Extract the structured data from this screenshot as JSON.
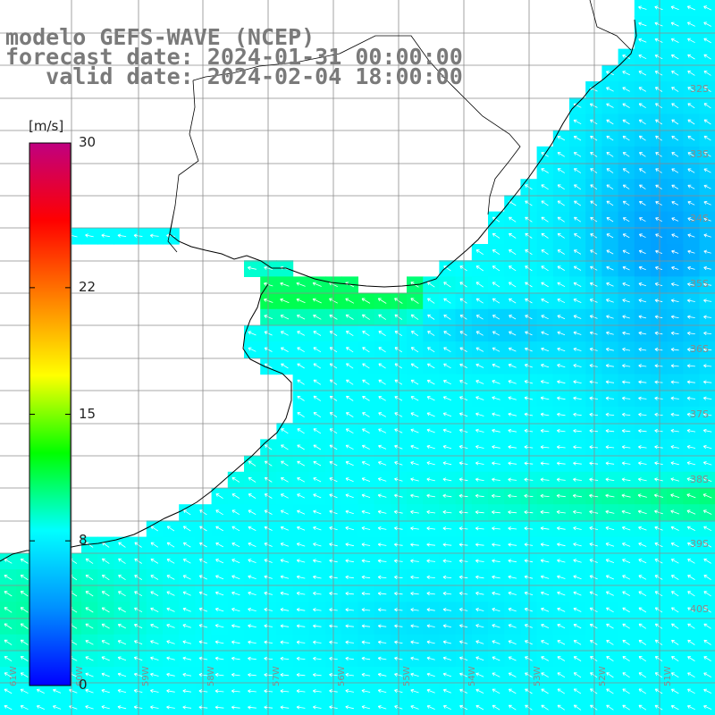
{
  "title": {
    "line1": "modelo GEFS-WAVE (NCEP)",
    "line2": "forecast date: 2024-01-31 00:00:00",
    "line3": "   valid date: 2024-02-04 18:00:00"
  },
  "colorbar": {
    "unit": "[m/s]",
    "min": 0,
    "max": 30,
    "ticks": [
      {
        "value": 30,
        "label": "30"
      },
      {
        "value": 22,
        "label": "22"
      },
      {
        "value": 15,
        "label": "15"
      },
      {
        "value": 8,
        "label": "8"
      },
      {
        "value": 0,
        "label": "0"
      }
    ],
    "colors": [
      "#0000ff",
      "#0090ff",
      "#00ffff",
      "#00ff00",
      "#ffff00",
      "#ff8000",
      "#ff0000",
      "#c00080"
    ]
  },
  "latitude_labels": [
    "32S",
    "33S",
    "34S",
    "35S",
    "36S",
    "37S",
    "38S",
    "39S",
    "40S"
  ],
  "longitude_labels": [
    "61W",
    "60W",
    "59W",
    "58W",
    "57W",
    "56W",
    "55W",
    "54W",
    "53W",
    "52W",
    "51W"
  ],
  "colors": {
    "land": "#ffffff",
    "grid": "#8c8c8c",
    "coast": "#000000",
    "title": "#7a7a7a",
    "arrow": "#ffffff"
  }
}
